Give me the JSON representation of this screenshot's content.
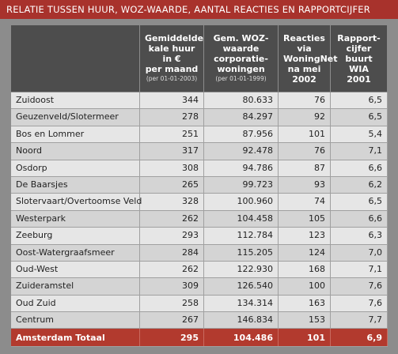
{
  "title": "RELATIE TUSSEN HUUR, WOZ-WAARDE, AANTAL REACTIES EN RAPPORTCIJFER",
  "table": {
    "columns": [
      {
        "label": "Gemiddelde\nkale huur in €\nper maand",
        "note": "(per 01-01-2003)"
      },
      {
        "label": "Gem. WOZ-\nwaarde\ncorporatie-\nwoningen",
        "note": "(per 01-01-1999)"
      },
      {
        "label": "Reacties via\nWoningNet\nna mei\n2002"
      },
      {
        "label": "Rapport-\ncijfer\nbuurt\nWIA 2001"
      }
    ],
    "rows": [
      [
        "Zuidoost",
        "344",
        "80.633",
        "76",
        "6,5"
      ],
      [
        "Geuzenveld/Slotermeer",
        "278",
        "84.297",
        "92",
        "6,5"
      ],
      [
        "Bos en Lommer",
        "251",
        "87.956",
        "101",
        "5,4"
      ],
      [
        "Noord",
        "317",
        "92.478",
        "76",
        "7,1"
      ],
      [
        "Osdorp",
        "308",
        "94.786",
        "87",
        "6,6"
      ],
      [
        "De Baarsjes",
        "265",
        "99.723",
        "93",
        "6,2"
      ],
      [
        "Slotervaart/Overtoomse Veld",
        "328",
        "100.960",
        "74",
        "6,5"
      ],
      [
        "Westerpark",
        "262",
        "104.458",
        "105",
        "6,6"
      ],
      [
        "Zeeburg",
        "293",
        "112.784",
        "123",
        "6,3"
      ],
      [
        "Oost-Watergraafsmeer",
        "284",
        "115.205",
        "124",
        "7,0"
      ],
      [
        "Oud-West",
        "262",
        "122.930",
        "168",
        "7,1"
      ],
      [
        "Zuideramstel",
        "309",
        "126.540",
        "100",
        "7,6"
      ],
      [
        "Oud Zuid",
        "258",
        "134.314",
        "163",
        "7,6"
      ],
      [
        "Centrum",
        "267",
        "146.834",
        "153",
        "7,7"
      ]
    ],
    "total": [
      "Amsterdam Totaal",
      "295",
      "104.486",
      "101",
      "6,9"
    ]
  }
}
